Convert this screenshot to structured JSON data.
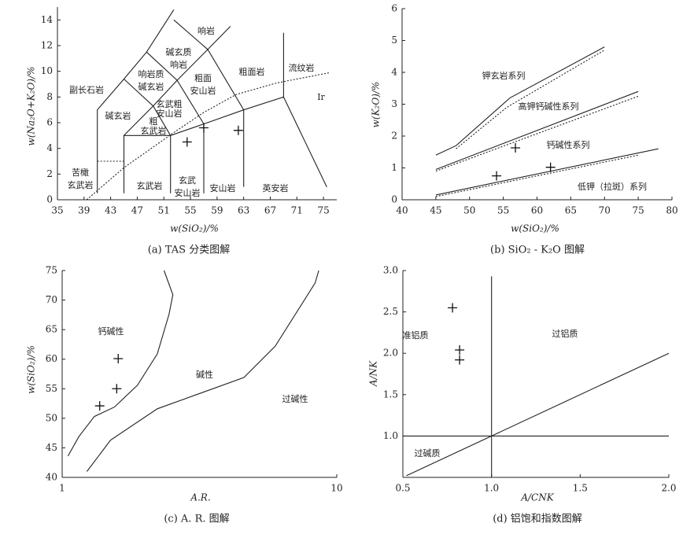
{
  "chart_data": [
    {
      "type": "scatter",
      "title": "(a) TAS 分类图解",
      "x_label": "w(SiO₂)/%",
      "y_label": "w(Na₂O+K₂O)/%",
      "xlim": [
        35,
        77
      ],
      "ylim": [
        0,
        15
      ],
      "xticks": [
        35,
        39,
        43,
        47,
        51,
        55,
        59,
        63,
        67,
        71,
        75
      ],
      "yticks": [
        0,
        2,
        4,
        6,
        8,
        10,
        12,
        14
      ],
      "x": [
        54.5,
        57,
        62.2
      ],
      "y": [
        4.5,
        5.6,
        5.4
      ],
      "marker": "+",
      "lines": [
        {
          "style": "solid",
          "x": [
            41,
            41,
            45,
            48.4,
            52.5
          ],
          "y": [
            0.5,
            7,
            9.4,
            11.5,
            14.8
          ]
        },
        {
          "style": "dotted",
          "x": [
            41,
            45
          ],
          "y": [
            3,
            3
          ]
        },
        {
          "style": "solid",
          "x": [
            45,
            45,
            52,
            57,
            63,
            69,
            75.5
          ],
          "y": [
            0.5,
            5,
            5,
            5.9,
            7,
            8,
            1
          ]
        },
        {
          "style": "solid",
          "x": [
            52,
            52
          ],
          "y": [
            0.5,
            5
          ]
        },
        {
          "style": "solid",
          "x": [
            57,
            57
          ],
          "y": [
            0.5,
            5.9
          ]
        },
        {
          "style": "solid",
          "x": [
            63,
            63
          ],
          "y": [
            1,
            7
          ]
        },
        {
          "style": "solid",
          "x": [
            45,
            49.4,
            53,
            57.6,
            61
          ],
          "y": [
            5,
            7.3,
            9.3,
            11.7,
            13.5
          ]
        },
        {
          "style": "solid",
          "x": [
            52,
            49.4,
            45
          ],
          "y": [
            5,
            7.3,
            9.4
          ]
        },
        {
          "style": "solid",
          "x": [
            57,
            53,
            48.4
          ],
          "y": [
            5.9,
            9.3,
            11.5
          ]
        },
        {
          "style": "solid",
          "x": [
            63,
            57.6,
            52.5
          ],
          "y": [
            7,
            11.7,
            14
          ]
        },
        {
          "style": "solid",
          "x": [
            69,
            69
          ],
          "y": [
            8,
            13
          ]
        },
        {
          "style": "dotted",
          "x": [
            39.4,
            45,
            52.4,
            57,
            61.9,
            68,
            76
          ],
          "y": [
            0,
            2.5,
            5.2,
            6.8,
            8.2,
            9.1,
            9.9
          ]
        }
      ],
      "field_labels": [
        [
          "副长石岩"
        ],
        [
          "碱玄岩"
        ],
        [
          "响岩质",
          "碱玄岩"
        ],
        [
          "碱玄质",
          "响岩"
        ],
        [
          "响岩"
        ],
        [
          "玄武粗",
          "安山岩"
        ],
        [
          "粗面",
          "安山岩"
        ],
        [
          "粗",
          "玄武岩"
        ],
        [
          "粗面岩"
        ],
        [
          "流纹岩"
        ],
        [
          "Ir"
        ],
        [
          "苦橄",
          "玄武岩"
        ],
        [
          "玄武岩"
        ],
        [
          "玄武",
          "安山岩"
        ],
        [
          "安山岩"
        ],
        [
          "英安岩"
        ]
      ]
    },
    {
      "type": "scatter",
      "title": "(b) SiO₂ - K₂O 图解",
      "x_label": "w(SiO₂)/%",
      "y_label": "w(K₂O)/%",
      "xlim": [
        40,
        80
      ],
      "ylim": [
        0,
        6
      ],
      "xticks": [
        40,
        45,
        50,
        55,
        60,
        65,
        70,
        75,
        80
      ],
      "yticks": [
        0,
        1,
        2,
        3,
        4,
        5,
        6
      ],
      "x": [
        54,
        56.8,
        62
      ],
      "y": [
        0.75,
        1.63,
        1.02
      ],
      "marker": "+",
      "lines": [
        {
          "style": "solid",
          "x": [
            45,
            48,
            56,
            70
          ],
          "y": [
            1.4,
            1.7,
            3.2,
            4.8
          ]
        },
        {
          "style": "dotted",
          "x": [
            48,
            55.5,
            70
          ],
          "y": [
            1.6,
            2.9,
            4.7
          ]
        },
        {
          "style": "solid",
          "x": [
            45,
            75
          ],
          "y": [
            0.95,
            3.4
          ]
        },
        {
          "style": "dotted",
          "x": [
            45,
            75
          ],
          "y": [
            0.9,
            3.25
          ]
        },
        {
          "style": "solid",
          "x": [
            45,
            78
          ],
          "y": [
            0.15,
            1.6
          ]
        },
        {
          "style": "dotted",
          "x": [
            45,
            75
          ],
          "y": [
            0.1,
            1.4
          ]
        }
      ],
      "field_labels": [
        [
          "钾玄岩系列"
        ],
        [
          "高钾钙碱性系列"
        ],
        [
          "钙碱性系列"
        ],
        [
          "低钾（拉斑）系列"
        ]
      ]
    },
    {
      "type": "scatter",
      "title": "(c) A. R. 图解",
      "x_label": "A.R.",
      "y_label": "w(SiO₂)/%",
      "log_x": true,
      "xlim": [
        1,
        10
      ],
      "ylim": [
        40,
        75
      ],
      "xticks": [
        1,
        10
      ],
      "yticks": [
        40,
        45,
        50,
        55,
        60,
        65,
        70,
        75
      ],
      "x": [
        1.37,
        1.58,
        1.6
      ],
      "y": [
        52.1,
        55,
        60.1
      ],
      "marker": "+",
      "lines": [
        {
          "style": "solid",
          "x": [
            1.05,
            1.15,
            1.31,
            1.55,
            1.88,
            2.22,
            2.45,
            2.53,
            2.35
          ],
          "y": [
            43.6,
            46.9,
            50.3,
            51.9,
            55.6,
            60.9,
            67.6,
            70.9,
            75
          ]
        },
        {
          "style": "solid",
          "x": [
            1.23,
            1.5,
            2.22,
            4.59,
            5.97,
            8.34,
            8.6
          ],
          "y": [
            41,
            46.3,
            51.6,
            56.9,
            62.2,
            72.9,
            75
          ]
        }
      ],
      "field_labels": [
        [
          "钙碱性"
        ],
        [
          "碱性"
        ],
        [
          "过碱性"
        ]
      ]
    },
    {
      "type": "scatter",
      "title": "(d) 铝饱和指数图解",
      "x_label": "A/CNK",
      "y_label": "A/NK",
      "xlim": [
        0.5,
        2.0
      ],
      "ylim": [
        0.5,
        3.0
      ],
      "xticks": [
        {
          "value": 0.5,
          "label": "0.5"
        },
        {
          "value": 1,
          "label": "1.0"
        },
        {
          "value": 1.5,
          "label": "1.5"
        },
        {
          "value": 2,
          "label": "2.0"
        }
      ],
      "yticks": [
        {
          "value": 1,
          "label": "1.0"
        },
        {
          "value": 1.5,
          "label": "1.5"
        },
        {
          "value": 2,
          "label": "2.0"
        },
        {
          "value": 2.5,
          "label": "2.5"
        },
        {
          "value": 3,
          "label": "3.0"
        }
      ],
      "x": [
        0.78,
        0.82,
        0.82
      ],
      "y": [
        2.55,
        2.04,
        1.92
      ],
      "marker": "+",
      "lines": [
        {
          "style": "solid",
          "x": [
            1,
            1
          ],
          "y": [
            0.5,
            2.93
          ]
        },
        {
          "style": "solid",
          "x": [
            0.5,
            2
          ],
          "y": [
            1,
            1
          ]
        },
        {
          "style": "solid",
          "x": [
            0.52,
            2
          ],
          "y": [
            0.52,
            2
          ]
        }
      ],
      "field_labels": [
        [
          "准铝质"
        ],
        [
          "过铝质"
        ],
        [
          "过碱质"
        ]
      ]
    }
  ]
}
